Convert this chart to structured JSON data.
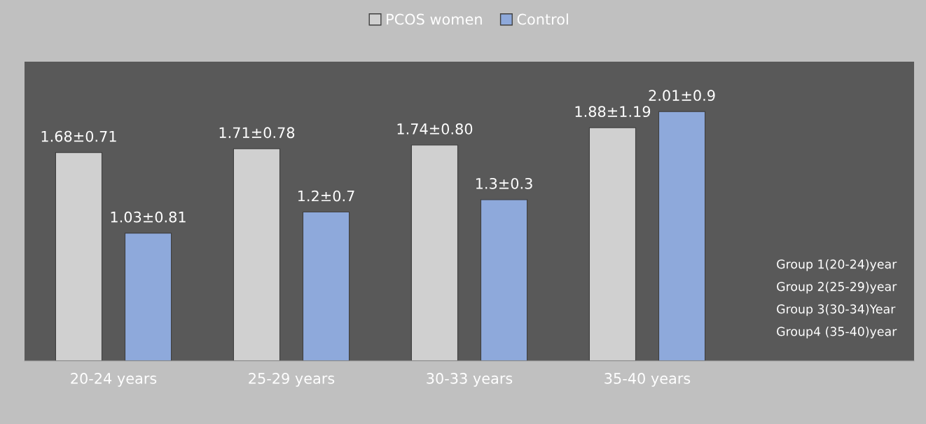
{
  "chart_data": {
    "type": "bar",
    "categories": [
      "20-24 years",
      "25-29 years",
      "30-33 years",
      "35-40 years"
    ],
    "series": [
      {
        "name": "PCOS women",
        "color": "#d0d0d0",
        "values": [
          1.68,
          1.71,
          1.74,
          1.88
        ],
        "value_labels": [
          "1.68±0.71",
          "1.71±0.78",
          "1.74±0.80",
          "1.88±1.19"
        ]
      },
      {
        "name": "Control",
        "color": "#8ea9db",
        "values": [
          1.03,
          1.2,
          1.3,
          2.01
        ],
        "value_labels": [
          "1.03±0.81",
          "1.2±0.7",
          "1.3±0.3",
          "2.01±0.9"
        ]
      }
    ],
    "legend": "top",
    "grid": false,
    "annotations": [
      "Group 1(20-24)year",
      "Group 2(25-29)year",
      "Group 3(30-34)Year",
      "Group4 (35-40)year"
    ]
  }
}
